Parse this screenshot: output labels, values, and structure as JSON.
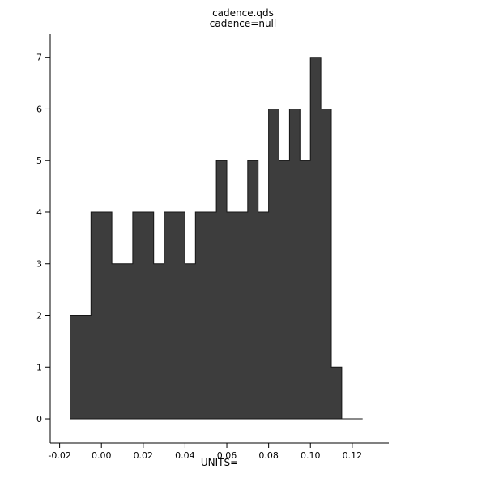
{
  "chart_data": {
    "type": "bar",
    "style": "histogram-step",
    "title": "cadence.qds",
    "subtitle": "cadence=null",
    "xlabel": "UNITS=",
    "ylabel": "",
    "bin_start": -0.015,
    "bin_width": 0.005,
    "counts": [
      2,
      2,
      4,
      4,
      3,
      3,
      4,
      4,
      3,
      4,
      4,
      3,
      4,
      4,
      5,
      4,
      4,
      5,
      4,
      6,
      5,
      6,
      5,
      7,
      6,
      1,
      0,
      0
    ],
    "x_ticks": [
      -0.02,
      0.0,
      0.02,
      0.04,
      0.06,
      0.08,
      0.1,
      0.12
    ],
    "x_tick_labels": [
      "-0.02",
      "0.00",
      "0.02",
      "0.04",
      "0.06",
      "0.08",
      "0.10",
      "0.12"
    ],
    "y_ticks": [
      0,
      1,
      2,
      3,
      4,
      5,
      6,
      7
    ],
    "y_tick_labels": [
      "0",
      "1",
      "2",
      "3",
      "4",
      "5",
      "6",
      "7"
    ],
    "xlim": [
      -0.0245,
      0.1375
    ],
    "ylim": [
      -0.47,
      7.45
    ],
    "grid": false,
    "legend": false,
    "colors": {
      "bar_fill": "#3d3d3d",
      "bar_stroke": "#161616",
      "axis": "#000000",
      "background": "#ffffff"
    }
  }
}
